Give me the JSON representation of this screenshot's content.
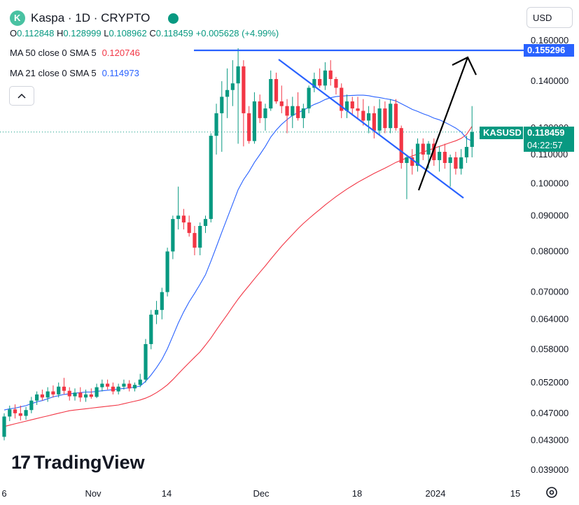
{
  "header": {
    "symbol_title": "Kaspa · 1D · CRYPTO",
    "ohlc": {
      "o_label": "O",
      "o": "0.112848",
      "h_label": "H",
      "h": "0.128999",
      "l_label": "L",
      "l": "0.108962",
      "c_label": "C",
      "c": "0.118459",
      "change": "+0.005628 (+4.99%)"
    },
    "ma50_label": "MA 50 close 0 SMA 5",
    "ma50_value": "0.120746",
    "ma21_label": "MA 21 close 0 SMA 5",
    "ma21_value": "0.114973"
  },
  "currency": "USD",
  "watermark": "TradingView",
  "price_tags": {
    "resistance": "0.155296",
    "symbol": "KASUSD",
    "last_price": "0.118459",
    "countdown": "04:22:57"
  },
  "colors": {
    "up": "#089981",
    "down": "#f23645",
    "ma21": "#2962ff",
    "ma50": "#f23645",
    "drawing_blue": "#2962ff",
    "arrow": "#000000"
  },
  "chart_data": {
    "type": "candlestick",
    "scale": "log",
    "y_ticks": [
      "0.160000",
      "0.140000",
      "0.120000",
      "0.110000",
      "0.100000",
      "0.090000",
      "0.080000",
      "0.070000",
      "0.064000",
      "0.058000",
      "0.052000",
      "0.047000",
      "0.043000",
      "0.039000"
    ],
    "x_ticks": [
      "6",
      "Nov",
      "14",
      "Dec",
      "18",
      "2024",
      "15"
    ],
    "ohlc": [
      [
        0.0435,
        0.047,
        0.043,
        0.0465
      ],
      [
        0.0465,
        0.0482,
        0.0458,
        0.0476
      ],
      [
        0.0476,
        0.0484,
        0.0462,
        0.047
      ],
      [
        0.047,
        0.0482,
        0.0459,
        0.0466
      ],
      [
        0.0466,
        0.048,
        0.046,
        0.0475
      ],
      [
        0.0475,
        0.0496,
        0.047,
        0.049
      ],
      [
        0.049,
        0.0505,
        0.0483,
        0.05
      ],
      [
        0.05,
        0.0508,
        0.049,
        0.0495
      ],
      [
        0.0495,
        0.0512,
        0.0488,
        0.0505
      ],
      [
        0.0505,
        0.0515,
        0.0495,
        0.05
      ],
      [
        0.05,
        0.052,
        0.0495,
        0.0513
      ],
      [
        0.0513,
        0.0528,
        0.05,
        0.0506
      ],
      [
        0.0506,
        0.0512,
        0.049,
        0.0497
      ],
      [
        0.0497,
        0.051,
        0.049,
        0.0503
      ],
      [
        0.0503,
        0.0512,
        0.0488,
        0.0495
      ],
      [
        0.0495,
        0.0508,
        0.0488,
        0.05
      ],
      [
        0.05,
        0.051,
        0.0493,
        0.0496
      ],
      [
        0.0496,
        0.0518,
        0.0494,
        0.0512
      ],
      [
        0.0512,
        0.0525,
        0.0505,
        0.0518
      ],
      [
        0.0518,
        0.0525,
        0.0508,
        0.0513
      ],
      [
        0.0513,
        0.052,
        0.05,
        0.0505
      ],
      [
        0.0505,
        0.0518,
        0.05,
        0.0513
      ],
      [
        0.0513,
        0.0525,
        0.0508,
        0.0518
      ],
      [
        0.0518,
        0.0524,
        0.0505,
        0.051
      ],
      [
        0.051,
        0.052,
        0.0505,
        0.0516
      ],
      [
        0.0516,
        0.0535,
        0.0512,
        0.0525
      ],
      [
        0.0525,
        0.06,
        0.052,
        0.059
      ],
      [
        0.059,
        0.066,
        0.058,
        0.065
      ],
      [
        0.065,
        0.068,
        0.063,
        0.066
      ],
      [
        0.066,
        0.071,
        0.064,
        0.07
      ],
      [
        0.07,
        0.081,
        0.069,
        0.08
      ],
      [
        0.08,
        0.09,
        0.078,
        0.089
      ],
      [
        0.089,
        0.099,
        0.086,
        0.09
      ],
      [
        0.09,
        0.092,
        0.086,
        0.088
      ],
      [
        0.088,
        0.09,
        0.084,
        0.085
      ],
      [
        0.085,
        0.087,
        0.079,
        0.081
      ],
      [
        0.081,
        0.088,
        0.079,
        0.087
      ],
      [
        0.087,
        0.09,
        0.085,
        0.089
      ],
      [
        0.089,
        0.118,
        0.088,
        0.117
      ],
      [
        0.117,
        0.13,
        0.11,
        0.126
      ],
      [
        0.126,
        0.14,
        0.111,
        0.133
      ],
      [
        0.133,
        0.146,
        0.124,
        0.136
      ],
      [
        0.136,
        0.15,
        0.129,
        0.139
      ],
      [
        0.139,
        0.156,
        0.114,
        0.147
      ],
      [
        0.147,
        0.15,
        0.113,
        0.126
      ],
      [
        0.126,
        0.129,
        0.114,
        0.115
      ],
      [
        0.115,
        0.135,
        0.114,
        0.131
      ],
      [
        0.131,
        0.134,
        0.122,
        0.124
      ],
      [
        0.124,
        0.13,
        0.119,
        0.128
      ],
      [
        0.128,
        0.145,
        0.127,
        0.141
      ],
      [
        0.141,
        0.144,
        0.13,
        0.131
      ],
      [
        0.131,
        0.138,
        0.126,
        0.129
      ],
      [
        0.129,
        0.132,
        0.118,
        0.125
      ],
      [
        0.125,
        0.133,
        0.12,
        0.129
      ],
      [
        0.129,
        0.135,
        0.123,
        0.124
      ],
      [
        0.124,
        0.13,
        0.12,
        0.128
      ],
      [
        0.128,
        0.138,
        0.126,
        0.137
      ],
      [
        0.137,
        0.144,
        0.135,
        0.141
      ],
      [
        0.141,
        0.146,
        0.137,
        0.138
      ],
      [
        0.138,
        0.149,
        0.136,
        0.145
      ],
      [
        0.145,
        0.15,
        0.138,
        0.141
      ],
      [
        0.141,
        0.142,
        0.134,
        0.137
      ],
      [
        0.137,
        0.139,
        0.124,
        0.127
      ],
      [
        0.127,
        0.134,
        0.124,
        0.131
      ],
      [
        0.131,
        0.133,
        0.125,
        0.128
      ],
      [
        0.128,
        0.133,
        0.124,
        0.127
      ],
      [
        0.127,
        0.132,
        0.121,
        0.123
      ],
      [
        0.123,
        0.129,
        0.118,
        0.126
      ],
      [
        0.126,
        0.129,
        0.116,
        0.119
      ],
      [
        0.119,
        0.132,
        0.117,
        0.128
      ],
      [
        0.128,
        0.131,
        0.118,
        0.12
      ],
      [
        0.12,
        0.132,
        0.118,
        0.13
      ],
      [
        0.13,
        0.132,
        0.119,
        0.12
      ],
      [
        0.12,
        0.121,
        0.105,
        0.107
      ],
      [
        0.107,
        0.11,
        0.095,
        0.109
      ],
      [
        0.109,
        0.112,
        0.103,
        0.106
      ],
      [
        0.106,
        0.116,
        0.104,
        0.114
      ],
      [
        0.114,
        0.116,
        0.108,
        0.11
      ],
      [
        0.11,
        0.115,
        0.105,
        0.114
      ],
      [
        0.114,
        0.116,
        0.106,
        0.108
      ],
      [
        0.108,
        0.113,
        0.104,
        0.111
      ],
      [
        0.111,
        0.114,
        0.105,
        0.107
      ],
      [
        0.107,
        0.11,
        0.099,
        0.109
      ],
      [
        0.109,
        0.111,
        0.103,
        0.105
      ],
      [
        0.105,
        0.112,
        0.103,
        0.109
      ],
      [
        0.109,
        0.117,
        0.107,
        0.1128
      ],
      [
        0.1128,
        0.129,
        0.109,
        0.1185
      ]
    ],
    "ma21": [
      0.0475,
      0.0477,
      0.0478,
      0.048,
      0.0482,
      0.0485,
      0.0488,
      0.049,
      0.0493,
      0.0496,
      0.0498,
      0.05,
      0.0501,
      0.0502,
      0.0503,
      0.0504,
      0.0504,
      0.0505,
      0.0506,
      0.0507,
      0.0508,
      0.0509,
      0.051,
      0.0511,
      0.0512,
      0.0514,
      0.0522,
      0.0533,
      0.0546,
      0.0561,
      0.0581,
      0.0606,
      0.0632,
      0.0656,
      0.0678,
      0.0697,
      0.0718,
      0.0741,
      0.0775,
      0.0812,
      0.0852,
      0.0893,
      0.0935,
      0.098,
      0.1013,
      0.104,
      0.1072,
      0.11,
      0.113,
      0.1165,
      0.1192,
      0.1215,
      0.1234,
      0.1251,
      0.1262,
      0.1273,
      0.1285,
      0.1297,
      0.1306,
      0.1318,
      0.1326,
      0.1331,
      0.1333,
      0.1335,
      0.1336,
      0.1337,
      0.1337,
      0.1335,
      0.133,
      0.1327,
      0.1322,
      0.1318,
      0.1312,
      0.13,
      0.1288,
      0.1276,
      0.1268,
      0.1258,
      0.125,
      0.124,
      0.1233,
      0.1223,
      0.1212,
      0.12,
      0.1185,
      0.116,
      0.115
    ],
    "ma50": [
      0.045,
      0.0452,
      0.0454,
      0.0456,
      0.0458,
      0.046,
      0.0462,
      0.0464,
      0.0466,
      0.0468,
      0.047,
      0.0472,
      0.0474,
      0.0475,
      0.0476,
      0.0477,
      0.0478,
      0.0479,
      0.048,
      0.0481,
      0.0482,
      0.0483,
      0.0485,
      0.0487,
      0.0489,
      0.0491,
      0.0494,
      0.0498,
      0.0503,
      0.0509,
      0.0516,
      0.0525,
      0.0535,
      0.0545,
      0.0555,
      0.0565,
      0.0575,
      0.0588,
      0.0602,
      0.0618,
      0.0634,
      0.065,
      0.0667,
      0.0684,
      0.07,
      0.0715,
      0.0731,
      0.0747,
      0.0763,
      0.078,
      0.0797,
      0.0814,
      0.083,
      0.0846,
      0.0862,
      0.0877,
      0.0891,
      0.0905,
      0.0918,
      0.0932,
      0.0945,
      0.0958,
      0.097,
      0.0982,
      0.0993,
      0.1004,
      0.1014,
      0.1024,
      0.1034,
      0.1043,
      0.1052,
      0.1062,
      0.1072,
      0.108,
      0.1088,
      0.1095,
      0.1102,
      0.1109,
      0.1116,
      0.1123,
      0.113,
      0.1137,
      0.1144,
      0.1151,
      0.116,
      0.1175,
      0.1207
    ]
  }
}
